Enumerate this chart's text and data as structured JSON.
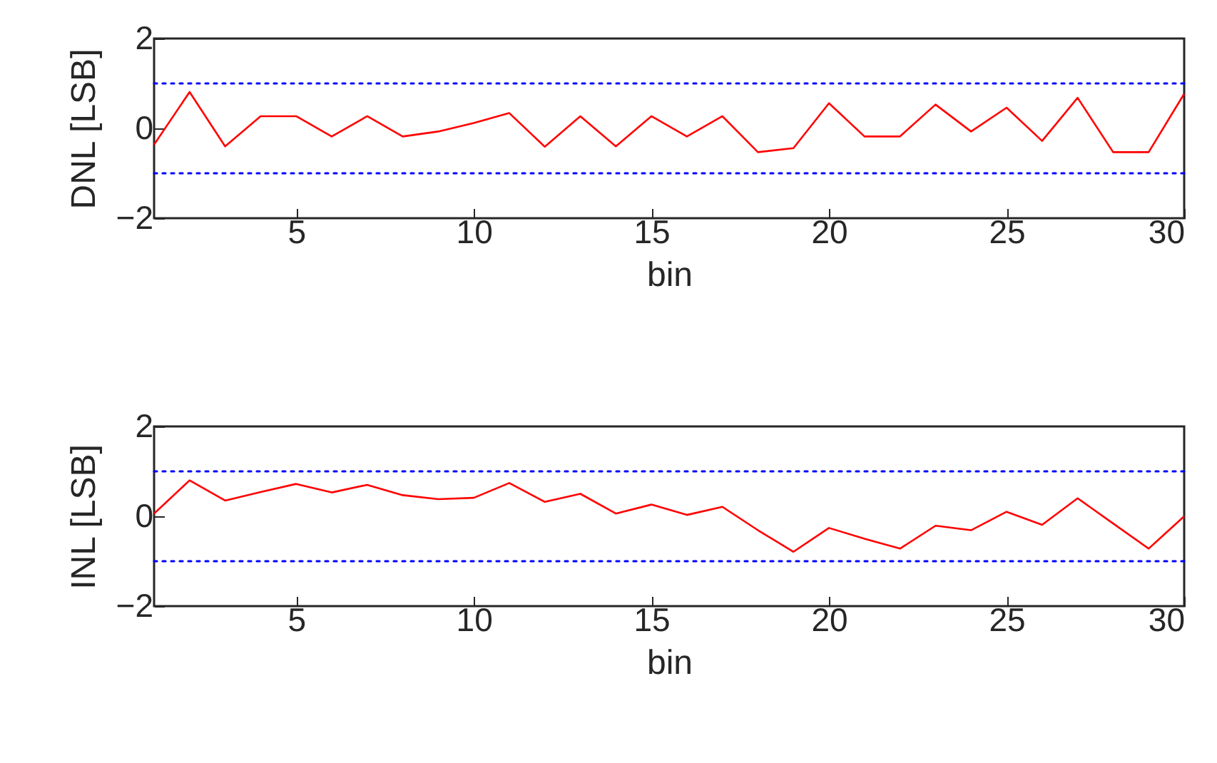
{
  "chart_data": [
    {
      "type": "line",
      "xlabel": "bin",
      "ylabel": "DNL [LSB]",
      "x": [
        1,
        2,
        3,
        4,
        5,
        6,
        7,
        8,
        9,
        10,
        11,
        12,
        13,
        14,
        15,
        16,
        17,
        18,
        19,
        20,
        21,
        22,
        23,
        24,
        25,
        26,
        27,
        28,
        29,
        30
      ],
      "series": [
        {
          "color": "#ff0000",
          "values": [
            -0.36,
            0.81,
            -0.4,
            0.27,
            0.27,
            -0.18,
            0.27,
            -0.18,
            -0.07,
            0.12,
            0.34,
            -0.41,
            0.27,
            -0.4,
            0.27,
            -0.18,
            0.27,
            -0.53,
            -0.44,
            0.56,
            -0.18,
            -0.18,
            0.53,
            -0.07,
            0.46,
            -0.28,
            0.68,
            -0.53,
            -0.53,
            0.77
          ]
        }
      ],
      "xlim": [
        1,
        30
      ],
      "xticks": [
        5,
        10,
        15,
        20,
        25,
        30
      ],
      "ylim": [
        -2,
        2
      ],
      "yticks": [
        -2,
        0,
        2
      ],
      "ref_lines": [
        {
          "axis": "y",
          "value": 1,
          "color": "#0000ff",
          "line_style": "dotted"
        },
        {
          "axis": "y",
          "value": -1,
          "color": "#0000ff",
          "line_style": "dotted"
        }
      ]
    },
    {
      "type": "line",
      "xlabel": "bin",
      "ylabel": "INL [LSB]",
      "x": [
        1,
        2,
        3,
        4,
        5,
        6,
        7,
        8,
        9,
        10,
        11,
        12,
        13,
        14,
        15,
        16,
        17,
        18,
        19,
        20,
        21,
        22,
        23,
        24,
        25,
        26,
        27,
        28,
        29,
        30
      ],
      "series": [
        {
          "color": "#ff0000",
          "values": [
            0.06,
            0.8,
            0.35,
            0.54,
            0.72,
            0.53,
            0.7,
            0.47,
            0.38,
            0.41,
            0.74,
            0.32,
            0.5,
            0.06,
            0.26,
            0.03,
            0.21,
            -0.31,
            -0.79,
            -0.26,
            -0.5,
            -0.72,
            -0.21,
            -0.31,
            0.1,
            -0.19,
            0.4,
            -0.16,
            -0.72,
            0
          ]
        }
      ],
      "xlim": [
        1,
        30
      ],
      "xticks": [
        5,
        10,
        15,
        20,
        25,
        30
      ],
      "ylim": [
        -2,
        2
      ],
      "yticks": [
        -2,
        0,
        2
      ],
      "ref_lines": [
        {
          "axis": "y",
          "value": 1,
          "color": "#0000ff",
          "line_style": "dotted"
        },
        {
          "axis": "y",
          "value": -1,
          "color": "#0000ff",
          "line_style": "dotted"
        }
      ]
    }
  ]
}
